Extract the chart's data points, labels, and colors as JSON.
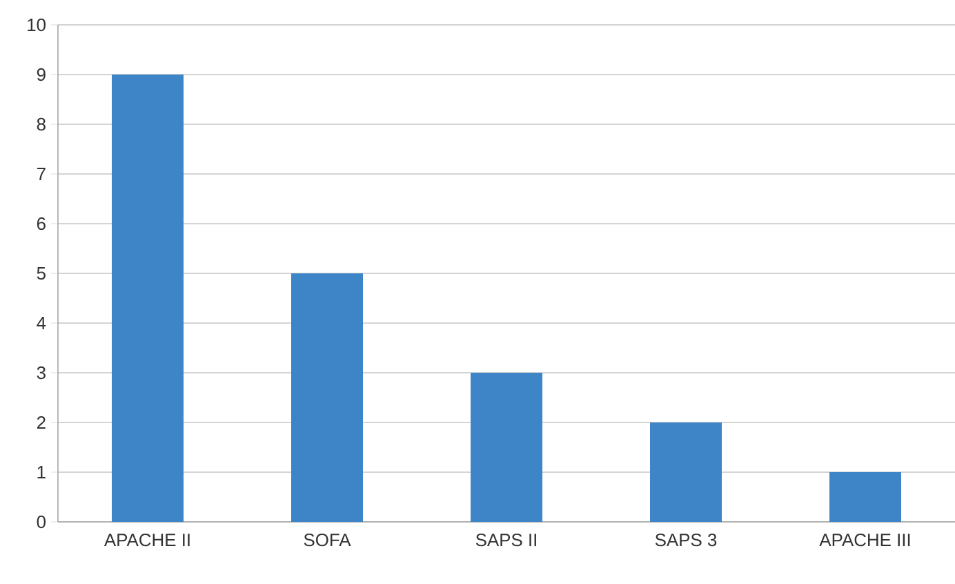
{
  "chart_data": {
    "type": "bar",
    "categories": [
      "APACHE II",
      "SOFA",
      "SAPS II",
      "SAPS 3",
      "APACHE III"
    ],
    "values": [
      9,
      5,
      3,
      2,
      1
    ],
    "color": "#3d85c6",
    "ylim": [
      0,
      10
    ],
    "yticks": [
      0,
      1,
      2,
      3,
      4,
      5,
      6,
      7,
      8,
      9,
      10
    ],
    "grid": "y"
  }
}
